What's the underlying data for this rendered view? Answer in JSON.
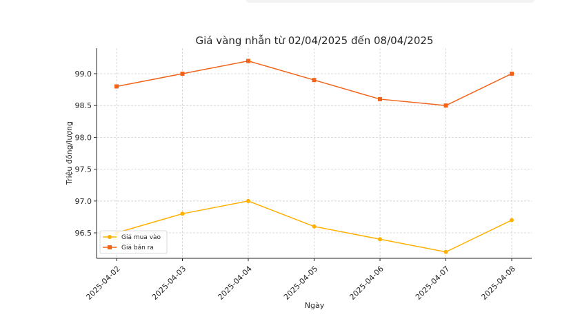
{
  "chart_data": {
    "type": "line",
    "title": "Giá vàng nhẫn từ 02/04/2025 đến 08/04/2025",
    "xlabel": "Ngày",
    "ylabel": "Triệu đồng/lượng",
    "x": [
      "2025-04-02",
      "2025-04-03",
      "2025-04-04",
      "2025-04-05",
      "2025-04-06",
      "2025-04-07",
      "2025-04-08"
    ],
    "y_ticks": [
      "96.5",
      "97.0",
      "97.5",
      "98.0",
      "98.5",
      "99.0"
    ],
    "ylim": [
      96.1,
      99.4
    ],
    "grid": true,
    "legend_position": "lower-left",
    "series": [
      {
        "name": "Giá mua vào",
        "values": [
          96.5,
          96.8,
          97.0,
          96.6,
          96.4,
          96.2,
          96.7
        ],
        "color": "#FFB000",
        "marker": "circle"
      },
      {
        "name": "Giá bán ra",
        "values": [
          98.8,
          99.0,
          99.2,
          98.9,
          98.6,
          98.5,
          99.0
        ],
        "color": "#F26419",
        "marker": "square"
      }
    ]
  }
}
